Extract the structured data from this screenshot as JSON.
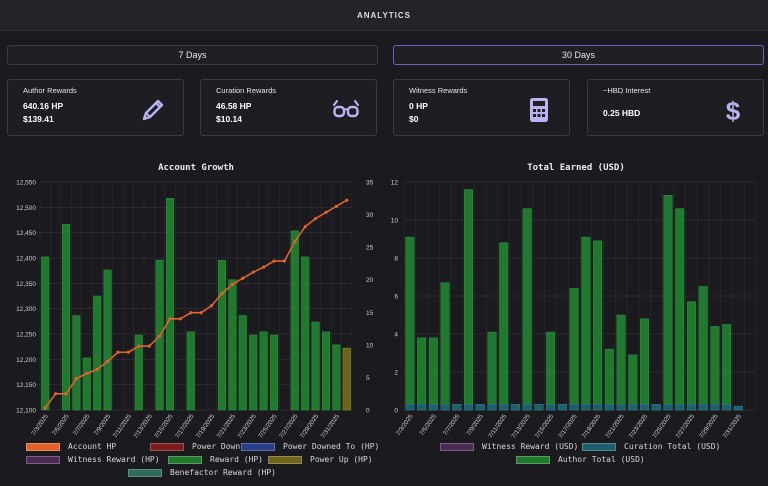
{
  "header": {
    "title": "ANALYTICS"
  },
  "range": {
    "seven_days": "7 Days",
    "thirty_days": "30 Days",
    "selected": "30 Days"
  },
  "cards": [
    {
      "label": "Author Rewards",
      "v1": "640.16 HP",
      "v2": "$139.41",
      "icon": "pencil-icon"
    },
    {
      "label": "Curation Rewards",
      "v1": "46.58 HP",
      "v2": "$10.14",
      "icon": "glasses-icon"
    },
    {
      "label": "Witness Rewards",
      "v1": "0 HP",
      "v2": "$0",
      "icon": "calculator-icon"
    },
    {
      "label": "~HBD Interest",
      "v1": "0.25 HBD",
      "v2": "",
      "icon": "dollar-icon"
    }
  ],
  "colors": {
    "accent": "#6a64c8",
    "icon": "#b8b4f0",
    "reward_bar": "#1f7a2e",
    "line": "#e2622a"
  },
  "chart_data": [
    {
      "type": "bar",
      "title": "Account Growth",
      "categories": [
        "7/3/2025",
        "7/4/2025",
        "7/5/2025",
        "7/6/2025",
        "7/7/2025",
        "7/8/2025",
        "7/9/2025",
        "7/10/2025",
        "7/11/2025",
        "7/12/2025",
        "7/13/2025",
        "7/14/2025",
        "7/15/2025",
        "7/16/2025",
        "7/17/2025",
        "7/18/2025",
        "7/19/2025",
        "7/20/2025",
        "7/21/2025",
        "7/22/2025",
        "7/23/2025",
        "7/24/2025",
        "7/25/2025",
        "7/26/2025",
        "7/27/2025",
        "7/28/2025",
        "7/29/2025",
        "7/30/2025",
        "7/31/2025",
        "8/1/2025"
      ],
      "x_tick_labels": [
        "7/3/2025",
        "7/5/2025",
        "7/7/2025",
        "7/9/2025",
        "7/11/2025",
        "7/13/2025",
        "7/15/2025",
        "7/17/2025",
        "7/19/2025",
        "7/21/2025",
        "7/23/2025",
        "7/25/2025",
        "7/27/2025",
        "7/29/2025",
        "7/31/2025"
      ],
      "y_left": {
        "min": 12100,
        "max": 12550,
        "ticks": [
          "12,100",
          "12,150",
          "12,200",
          "12,250",
          "12,300",
          "12,350",
          "12,400",
          "12,450",
          "12,500",
          "12,550"
        ]
      },
      "y_right": {
        "min": 0,
        "max": 35,
        "ticks": [
          "0",
          "5",
          "10",
          "15",
          "20",
          "25",
          "30",
          "35"
        ]
      },
      "series": [
        {
          "name": "Account HP",
          "kind": "line",
          "axis": "left",
          "values": [
            12104,
            12132,
            12132,
            12162,
            12172,
            12180,
            12196,
            12214,
            12214,
            12226,
            12226,
            12246,
            12280,
            12280,
            12292,
            12292,
            12306,
            12330,
            12348,
            12360,
            12372,
            12382,
            12394,
            12394,
            12432,
            12462,
            12478,
            12490,
            12502,
            12514
          ]
        },
        {
          "name": "Reward (HP)",
          "kind": "bar",
          "axis": "right",
          "values": [
            23.5,
            0,
            28.5,
            14.5,
            8,
            17.5,
            21.5,
            0,
            0,
            11.5,
            0,
            23,
            32.5,
            0,
            12,
            0,
            0,
            23,
            20,
            14.5,
            11.5,
            12,
            11.5,
            0,
            27.5,
            23.5,
            13.5,
            12,
            10,
            9.5
          ]
        },
        {
          "name": "Power Up (HP)",
          "kind": "bar",
          "axis": "right",
          "values": [
            0,
            0,
            0,
            0,
            0,
            0,
            0,
            0,
            0,
            0,
            0,
            0,
            0,
            0,
            0,
            0,
            0,
            0,
            0,
            0,
            0,
            0,
            0,
            0,
            0,
            0,
            0,
            0,
            0,
            9.5
          ]
        }
      ],
      "legend": [
        "Account HP",
        "Power Down (HP)",
        "Power Downed To (HP)",
        "Witness Reward (HP)",
        "Reward (HP)",
        "Power Up (HP)",
        "Benefactor Reward (HP)"
      ],
      "legend_colors": [
        "#e2622a",
        "#7a1c1c",
        "#2a3f8a",
        "#4a2a55",
        "#1f7a2e",
        "#6f6518",
        "#2f6a5a"
      ]
    },
    {
      "type": "bar",
      "title": "Total Earned (USD)",
      "categories": [
        "7/3/2025",
        "7/4/2025",
        "7/5/2025",
        "7/6/2025",
        "7/7/2025",
        "7/8/2025",
        "7/9/2025",
        "7/10/2025",
        "7/11/2025",
        "7/12/2025",
        "7/13/2025",
        "7/14/2025",
        "7/15/2025",
        "7/16/2025",
        "7/17/2025",
        "7/18/2025",
        "7/19/2025",
        "7/20/2025",
        "7/21/2025",
        "7/22/2025",
        "7/23/2025",
        "7/24/2025",
        "7/25/2025",
        "7/26/2025",
        "7/27/2025",
        "7/28/2025",
        "7/29/2025",
        "7/30/2025",
        "7/31/2025",
        "8/1/2025"
      ],
      "x_tick_labels": [
        "7/3/2025",
        "7/5/2025",
        "7/7/2025",
        "7/9/2025",
        "7/11/2025",
        "7/13/2025",
        "7/15/2025",
        "7/17/2025",
        "7/19/2025",
        "7/21/2025",
        "7/23/2025",
        "7/25/2025",
        "7/27/2025",
        "7/29/2025",
        "7/31/2025"
      ],
      "y": {
        "min": 0,
        "max": 12,
        "ticks": [
          "0",
          "2",
          "4",
          "6",
          "8",
          "10",
          "12"
        ]
      },
      "series": [
        {
          "name": "Author Total (USD)",
          "values": [
            9.1,
            3.8,
            3.8,
            6.7,
            0.3,
            11.6,
            0.3,
            4.1,
            8.8,
            0.3,
            10.6,
            0.3,
            4.1,
            0.3,
            6.4,
            9.1,
            8.9,
            3.2,
            5,
            2.9,
            4.8,
            0.3,
            11.3,
            10.6,
            5.7,
            6.5,
            4.4,
            4.5,
            0.2,
            0
          ]
        },
        {
          "name": "Curation Total (USD)",
          "values": [
            0.3,
            0.3,
            0.3,
            0.3,
            0.3,
            0.3,
            0.3,
            0.3,
            0.3,
            0.3,
            0.3,
            0.3,
            0.3,
            0.3,
            0.3,
            0.3,
            0.3,
            0.3,
            0.3,
            0.3,
            0.3,
            0.3,
            0.3,
            0.3,
            0.3,
            0.3,
            0.3,
            0.3,
            0.2,
            0
          ]
        },
        {
          "name": "Witness Reward (USD)",
          "values": [
            0,
            0,
            0,
            0,
            0,
            0,
            0,
            0,
            0,
            0,
            0,
            0,
            0,
            0,
            0,
            0,
            0,
            0,
            0,
            0,
            0,
            0,
            0,
            0,
            0,
            0,
            0,
            0,
            0,
            0
          ]
        }
      ],
      "legend": [
        "Witness Reward (USD)",
        "Curation Total (USD)",
        "Author Total (USD)"
      ],
      "legend_colors": [
        "#4a2a55",
        "#1d5f6e",
        "#1f7a2e"
      ]
    }
  ]
}
